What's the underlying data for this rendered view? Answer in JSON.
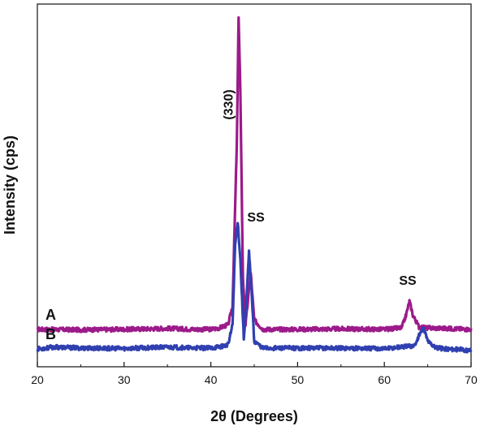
{
  "chart_data": {
    "type": "line",
    "title": "",
    "xlabel": "2θ (Degrees)",
    "ylabel": "Intensity (cps)",
    "xlim": [
      20,
      70
    ],
    "xticks": [
      "20",
      "30",
      "40",
      "50",
      "60",
      "70"
    ],
    "yticks": [],
    "grid": false,
    "legend": "none",
    "series": [
      {
        "name": "A",
        "color": "#9c1a8a",
        "x": [
          20,
          25,
          30,
          35,
          38,
          40,
          41,
          42,
          42.5,
          43,
          43.2,
          43.4,
          43.7,
          44,
          44.3,
          44.6,
          45,
          46,
          50,
          55,
          60,
          62,
          62.5,
          62.9,
          63.3,
          64,
          65,
          67,
          70
        ],
        "y": [
          0.5,
          0.49,
          0.5,
          0.52,
          0.5,
          0.5,
          0.53,
          0.6,
          1.0,
          4.5,
          7.2,
          5.6,
          1.6,
          0.6,
          1.15,
          1.7,
          0.7,
          0.5,
          0.5,
          0.51,
          0.5,
          0.53,
          0.8,
          1.1,
          0.8,
          0.55,
          0.53,
          0.52,
          0.5
        ]
      },
      {
        "name": "B",
        "color": "#3040b0",
        "x": [
          20,
          22,
          25,
          30,
          35,
          38,
          40,
          41,
          42,
          42.5,
          42.8,
          43.1,
          43.4,
          43.8,
          44.1,
          44.4,
          44.7,
          45,
          46,
          50,
          55,
          60,
          63.5,
          64.2,
          64.6,
          65,
          66,
          70
        ],
        "y": [
          0.08,
          0.12,
          0.1,
          0.09,
          0.12,
          0.1,
          0.1,
          0.13,
          0.17,
          0.6,
          2.3,
          2.8,
          2.0,
          0.3,
          1.1,
          2.15,
          1.3,
          0.25,
          0.1,
          0.1,
          0.1,
          0.09,
          0.15,
          0.45,
          0.5,
          0.25,
          0.1,
          0.05
        ]
      }
    ],
    "annotations": [
      {
        "text": "(330)",
        "x": 42.5,
        "y": 5.3,
        "rotation": -90
      },
      {
        "text": "SS",
        "x": 45.2,
        "y": 2.8
      },
      {
        "text": "SS",
        "x": 62.7,
        "y": 1.45
      }
    ]
  }
}
